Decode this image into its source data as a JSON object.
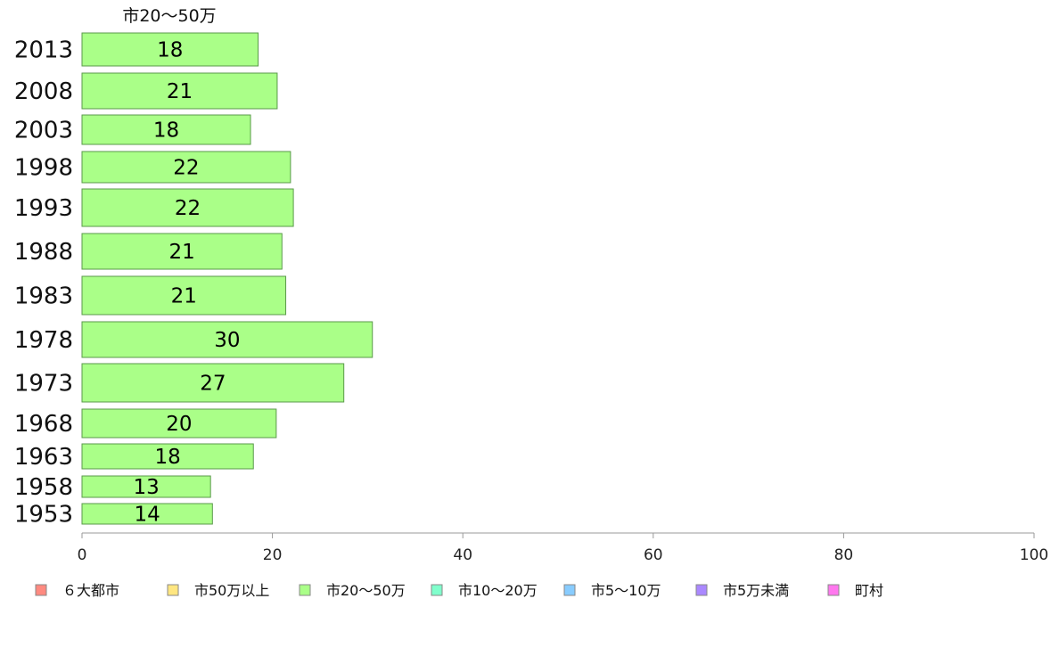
{
  "chart_data": {
    "type": "bar",
    "orientation": "horizontal",
    "title": "",
    "series_title": "市20〜50万",
    "categories": [
      "2013",
      "2008",
      "2003",
      "1998",
      "1993",
      "1988",
      "1983",
      "1978",
      "1973",
      "1968",
      "1963",
      "1958",
      "1953"
    ],
    "values": [
      18.5,
      20.5,
      17.7,
      21.9,
      22.2,
      21.0,
      21.4,
      30.5,
      27.5,
      20.4,
      18.0,
      13.5,
      13.7
    ],
    "value_labels": [
      "18",
      "21",
      "18",
      "22",
      "22",
      "21",
      "21",
      "30",
      "27",
      "20",
      "18",
      "13",
      "14"
    ],
    "xlim": [
      0,
      100
    ],
    "xticks": [
      "0",
      "20",
      "40",
      "60",
      "80",
      "100"
    ],
    "xlabel": "",
    "ylabel": "",
    "grid": false,
    "legend_position": "bottom",
    "bar_color": "#aaff88",
    "bar_border_color": "#5a9a4a",
    "legend": [
      {
        "label": "６大都市",
        "color": "#ff8a80"
      },
      {
        "label": "市50万以上",
        "color": "#ffe680"
      },
      {
        "label": "市20〜50万",
        "color": "#aaff88"
      },
      {
        "label": "市10〜20万",
        "color": "#80ffcc"
      },
      {
        "label": "市5〜10万",
        "color": "#88ccff"
      },
      {
        "label": "市5万未満",
        "color": "#aa88ff"
      },
      {
        "label": "町村",
        "color": "#ff77ee"
      }
    ]
  }
}
